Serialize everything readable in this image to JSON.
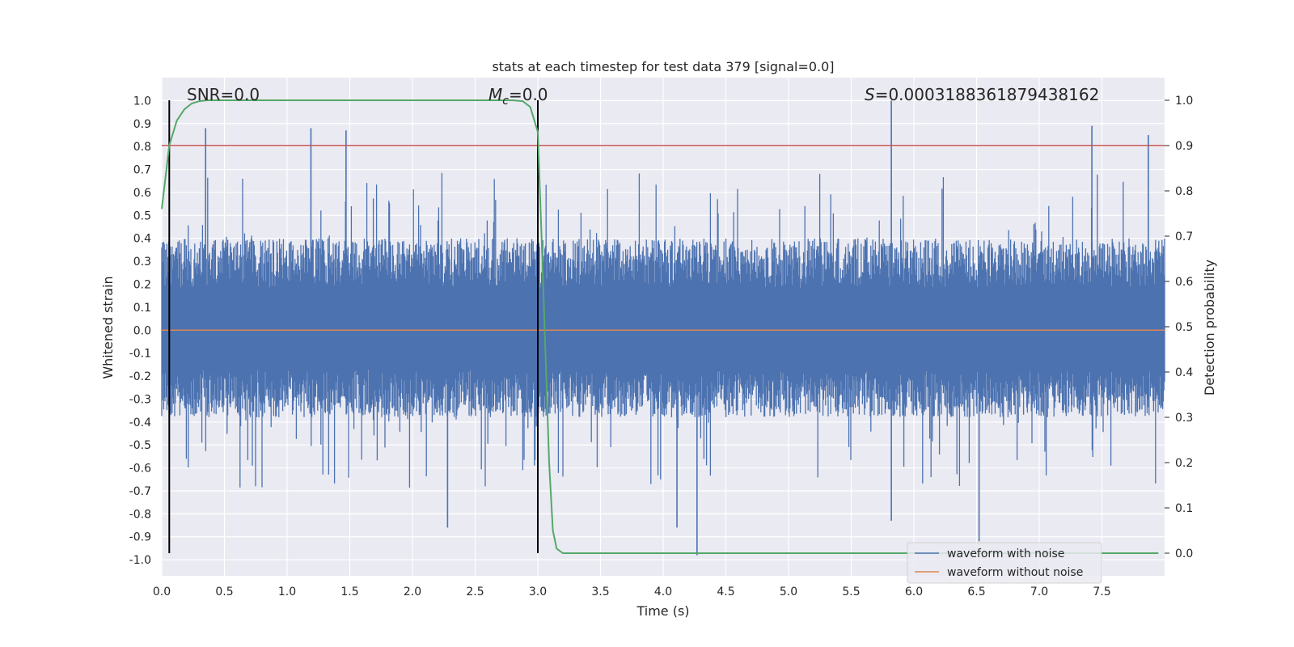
{
  "chart_data": {
    "type": "line",
    "title": "stats at each timestep for test data 379 [signal=0.0]",
    "xlabel": "Time (s)",
    "ylabel": "Whitened strain",
    "y2label": "Detection probability",
    "xlim": [
      0.0,
      8.0
    ],
    "ylim": [
      -1.07,
      1.1
    ],
    "y2lim": [
      -0.05,
      1.05
    ],
    "xticks": [
      "0.0",
      "0.5",
      "1.0",
      "1.5",
      "2.0",
      "2.5",
      "3.0",
      "3.5",
      "4.0",
      "4.5",
      "5.0",
      "5.5",
      "6.0",
      "6.5",
      "7.0",
      "7.5"
    ],
    "yticks": [
      "1.0",
      "0.9",
      "0.8",
      "0.7",
      "0.6",
      "0.5",
      "0.4",
      "0.3",
      "0.2",
      "0.1",
      "0.0",
      "-0.1",
      "-0.2",
      "-0.3",
      "-0.4",
      "-0.5",
      "-0.6",
      "-0.7",
      "-0.8",
      "-0.9",
      "-1.0"
    ],
    "y2ticks": [
      "1.0",
      "0.9",
      "0.8",
      "0.7",
      "0.6",
      "0.5",
      "0.4",
      "0.3",
      "0.2",
      "0.1",
      "0.0"
    ],
    "annotations": {
      "snr": "SNR=0.0",
      "mc_symbol": "M",
      "mc_sub": "c",
      "mc_value": "=0.0",
      "s_symbol": "S",
      "s_value": "=0.0003188361879438162"
    },
    "legend": {
      "placement": "lower right",
      "entries": [
        "waveform with noise",
        "waveform without noise"
      ]
    },
    "series": [
      {
        "name": "waveform with noise",
        "color": "#4c72b0",
        "kind": "noise",
        "envelope_typical": [
          -0.38,
          0.4
        ],
        "extremes": [
          {
            "x": 0.35,
            "y": 0.88
          },
          {
            "x": 1.19,
            "y": 0.88
          },
          {
            "x": 1.47,
            "y": 0.87
          },
          {
            "x": 5.82,
            "y": 1.0
          },
          {
            "x": 7.42,
            "y": 0.89
          },
          {
            "x": 7.87,
            "y": 0.85
          },
          {
            "x": 4.27,
            "y": -0.98
          },
          {
            "x": 6.52,
            "y": -0.92
          },
          {
            "x": 2.28,
            "y": -0.86
          },
          {
            "x": 4.11,
            "y": -0.86
          },
          {
            "x": 5.82,
            "y": -0.83
          }
        ]
      },
      {
        "name": "waveform without noise",
        "color": "#dd8452",
        "x": [
          0.0,
          8.0
        ],
        "y": [
          0.0,
          0.0
        ]
      },
      {
        "name": "detection probability",
        "color": "#55a868",
        "axis": "right",
        "x": [
          0.0,
          0.06,
          0.12,
          0.18,
          0.24,
          0.3,
          0.36,
          0.42,
          0.5,
          1.0,
          2.0,
          2.6,
          2.8,
          2.88,
          2.94,
          3.0,
          3.03,
          3.06,
          3.09,
          3.12,
          3.15,
          3.2,
          3.3,
          4.0,
          5.0,
          6.0,
          7.0,
          7.95
        ],
        "y": [
          0.76,
          0.9,
          0.955,
          0.98,
          0.993,
          0.998,
          1.0,
          1.0,
          1.0,
          1.0,
          1.0,
          1.0,
          1.0,
          0.998,
          0.985,
          0.93,
          0.7,
          0.45,
          0.2,
          0.05,
          0.01,
          0.0,
          0.0,
          0.0,
          0.0,
          0.0,
          0.0,
          0.0
        ]
      }
    ],
    "reference_lines": {
      "threshold_y2": 0.9,
      "threshold_color": "#c44e52",
      "vertical_x": [
        0.06,
        3.0
      ],
      "vertical_color": "#000000"
    },
    "grid": true,
    "background": "#eaeaf2"
  }
}
